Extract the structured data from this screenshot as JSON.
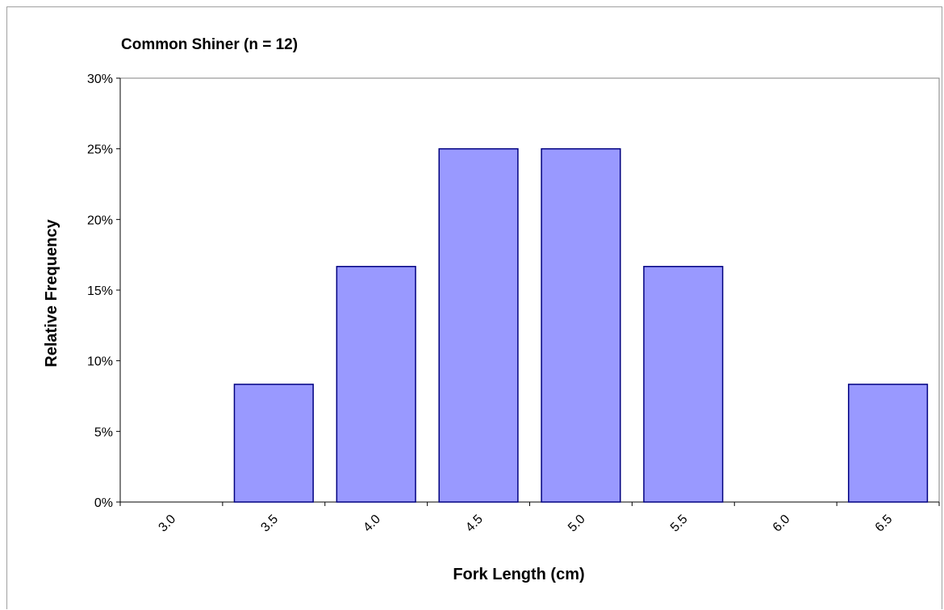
{
  "chart_data": {
    "type": "bar",
    "title": "Common Shiner (n = 12)",
    "xlabel": "Fork Length (cm)",
    "ylabel": "Relative Frequency",
    "categories": [
      "3.0",
      "3.5",
      "4.0",
      "4.5",
      "5.0",
      "5.5",
      "6.0",
      "6.5"
    ],
    "values": [
      0,
      8.33,
      16.67,
      25,
      25,
      16.67,
      0,
      8.33
    ],
    "value_unit": "percent",
    "ylim": [
      0,
      30
    ],
    "yticks": [
      0,
      5,
      10,
      15,
      20,
      25,
      30
    ],
    "ytick_labels": [
      "0%",
      "5%",
      "10%",
      "15%",
      "20%",
      "25%",
      "30%"
    ],
    "grid": false,
    "legend": "none",
    "bar_color": "#9999ff",
    "bar_edge_color": "#000080",
    "xtick_rotation": "diagonal"
  }
}
